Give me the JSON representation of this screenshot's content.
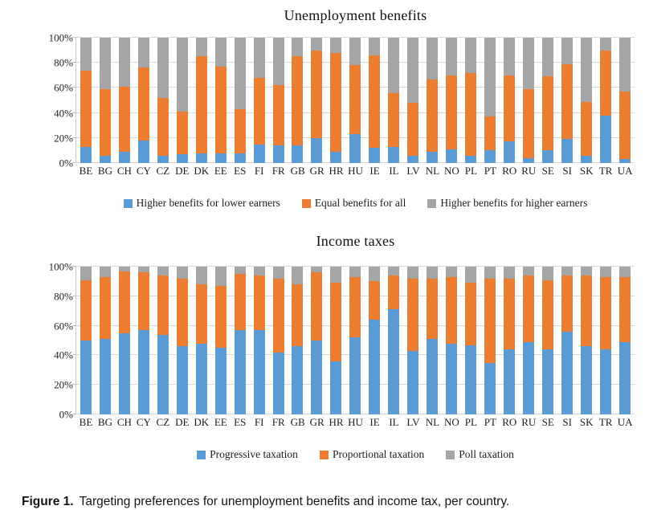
{
  "colors": {
    "blue": "#5B9BD5",
    "orange": "#ED7D31",
    "gray": "#A5A5A5",
    "gridline": "#D9D9D9"
  },
  "caption": {
    "label": "Figure 1.",
    "text": "Targeting preferences for unemployment benefits and income tax, per country."
  },
  "chart_data": [
    {
      "type": "bar",
      "stacked": true,
      "percent_stacked": true,
      "title": "Unemployment benefits",
      "grid": true,
      "legend_position": "bottom",
      "ylim": [
        0,
        100
      ],
      "ytick_labels": [
        "0%",
        "20%",
        "40%",
        "60%",
        "80%",
        "100%"
      ],
      "ytick_values": [
        0,
        20,
        40,
        60,
        80,
        100
      ],
      "categories": [
        "BE",
        "BG",
        "CH",
        "CY",
        "CZ",
        "DE",
        "DK",
        "EE",
        "ES",
        "FI",
        "FR",
        "GB",
        "GR",
        "HR",
        "HU",
        "IE",
        "IL",
        "LV",
        "NL",
        "NO",
        "PL",
        "PT",
        "RO",
        "RU",
        "SE",
        "SI",
        "SK",
        "TR",
        "UA"
      ],
      "series": [
        {
          "name": "Higher benefits for lower earners",
          "color_key": "blue",
          "values": [
            13,
            6,
            9,
            18,
            6,
            7,
            8,
            8,
            8,
            15,
            14,
            14,
            20,
            9,
            23,
            12,
            13,
            6,
            9,
            11,
            6,
            10,
            17,
            4,
            10,
            19,
            6,
            38,
            3
          ]
        },
        {
          "name": "Equal benefits for all",
          "color_key": "orange",
          "values": [
            61,
            53,
            52,
            58,
            46,
            34,
            77,
            69,
            35,
            53,
            48,
            71,
            70,
            79,
            55,
            74,
            43,
            42,
            58,
            59,
            66,
            27,
            53,
            55,
            59,
            60,
            43,
            52,
            54
          ]
        },
        {
          "name": "Higher benefits for higher earners",
          "color_key": "gray",
          "values": [
            26,
            41,
            39,
            24,
            48,
            59,
            15,
            23,
            57,
            32,
            38,
            15,
            10,
            12,
            22,
            14,
            44,
            52,
            33,
            30,
            28,
            63,
            30,
            41,
            31,
            21,
            51,
            10,
            43
          ]
        }
      ]
    },
    {
      "type": "bar",
      "stacked": true,
      "percent_stacked": true,
      "title": "Income taxes",
      "grid": true,
      "legend_position": "bottom",
      "ylim": [
        0,
        100
      ],
      "ytick_labels": [
        "0%",
        "20%",
        "40%",
        "60%",
        "80%",
        "100%"
      ],
      "ytick_values": [
        0,
        20,
        40,
        60,
        80,
        100
      ],
      "categories": [
        "BE",
        "BG",
        "CH",
        "CY",
        "CZ",
        "DE",
        "DK",
        "EE",
        "ES",
        "FI",
        "FR",
        "GB",
        "GR",
        "HR",
        "HU",
        "IE",
        "IL",
        "LV",
        "NL",
        "NO",
        "PL",
        "PT",
        "RO",
        "RU",
        "SE",
        "SI",
        "SK",
        "TR",
        "UA"
      ],
      "series": [
        {
          "name": "Progressive taxation",
          "color_key": "blue",
          "values": [
            50,
            51,
            55,
            57,
            54,
            46,
            48,
            45,
            57,
            57,
            42,
            46,
            50,
            36,
            52,
            64,
            71,
            43,
            51,
            48,
            47,
            35,
            44,
            49,
            44,
            56,
            46,
            44,
            49
          ]
        },
        {
          "name": "Proportional taxation",
          "color_key": "orange",
          "values": [
            41,
            42,
            42,
            39,
            40,
            46,
            40,
            42,
            38,
            37,
            50,
            42,
            46,
            53,
            41,
            26,
            23,
            49,
            41,
            45,
            42,
            57,
            48,
            45,
            47,
            38,
            48,
            49,
            44
          ]
        },
        {
          "name": "Poll taxation",
          "color_key": "gray",
          "values": [
            9,
            7,
            3,
            4,
            6,
            8,
            12,
            13,
            5,
            6,
            8,
            12,
            4,
            11,
            7,
            10,
            6,
            8,
            8,
            7,
            11,
            8,
            8,
            6,
            9,
            6,
            6,
            7,
            7
          ]
        }
      ]
    }
  ]
}
